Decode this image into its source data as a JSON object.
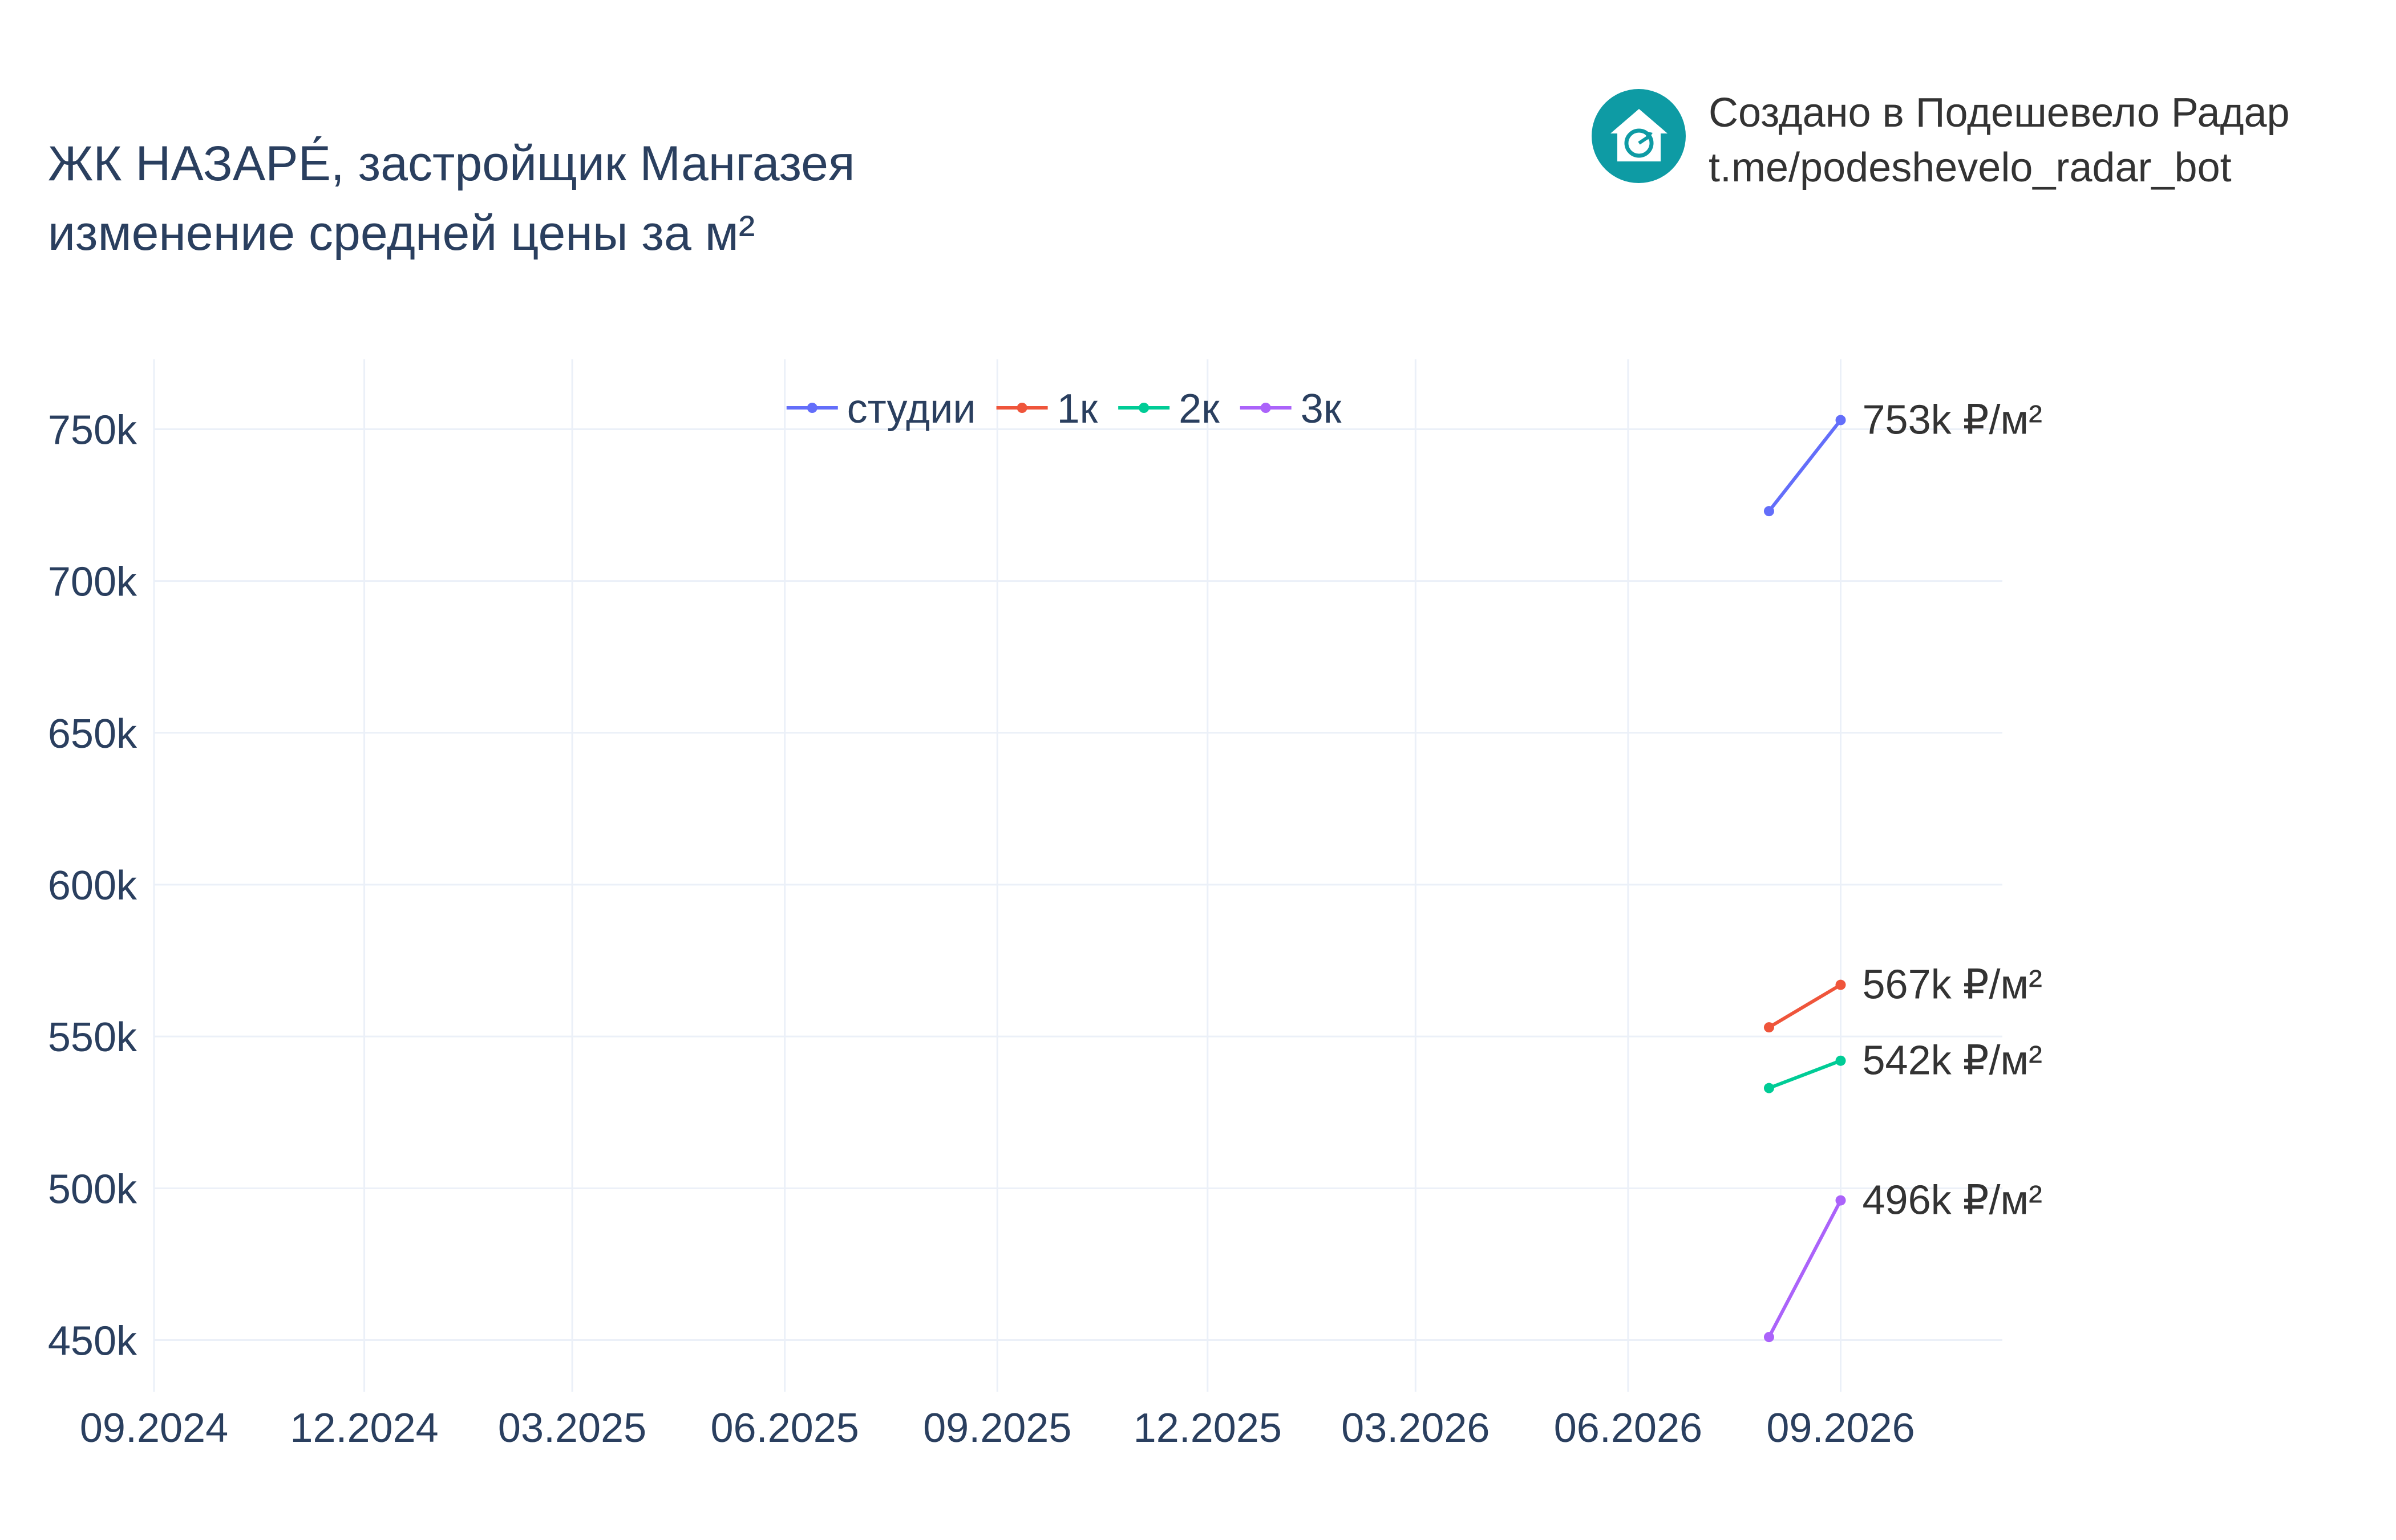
{
  "title": {
    "line1": "ЖК НАЗАРЕ́, застройщик Мангазея",
    "line2": "изменение средней цены за м²"
  },
  "brand": {
    "line1": "Создано в Подешевело Радар",
    "line2": "t.me/podeshevelo_radar_bot",
    "logo_icon": "house-refresh-icon",
    "logo_color": "#0e9ba4"
  },
  "chart_data": {
    "type": "line",
    "x_ticks": [
      "09.2024",
      "12.2024",
      "03.2025",
      "06.2025",
      "09.2025",
      "12.2025",
      "03.2026",
      "06.2026",
      "09.2026"
    ],
    "y_ticks": [
      {
        "value": 450000,
        "label": "450k"
      },
      {
        "value": 500000,
        "label": "500k"
      },
      {
        "value": 550000,
        "label": "550k"
      },
      {
        "value": 600000,
        "label": "600k"
      },
      {
        "value": 650000,
        "label": "650k"
      },
      {
        "value": 700000,
        "label": "700k"
      },
      {
        "value": 750000,
        "label": "750k"
      }
    ],
    "x_range": [
      "2024-09-01",
      "2026-11-10"
    ],
    "y_range": [
      433000,
      773000
    ],
    "x": [
      "2026-08-01",
      "2026-09-01"
    ],
    "series": [
      {
        "name": "студии",
        "color": "#636efa",
        "values": [
          723000,
          753000
        ],
        "end_label": "753k ₽/м²"
      },
      {
        "name": "1к",
        "color": "#ef553b",
        "values": [
          553000,
          567000
        ],
        "end_label": "567k ₽/м²"
      },
      {
        "name": "2к",
        "color": "#00cc96",
        "values": [
          533000,
          542000
        ],
        "end_label": "542k ₽/м²"
      },
      {
        "name": "3к",
        "color": "#ab63fa",
        "values": [
          451000,
          496000
        ],
        "end_label": "496k ₽/м²"
      }
    ],
    "grid": true,
    "legend_position": "top-center"
  }
}
